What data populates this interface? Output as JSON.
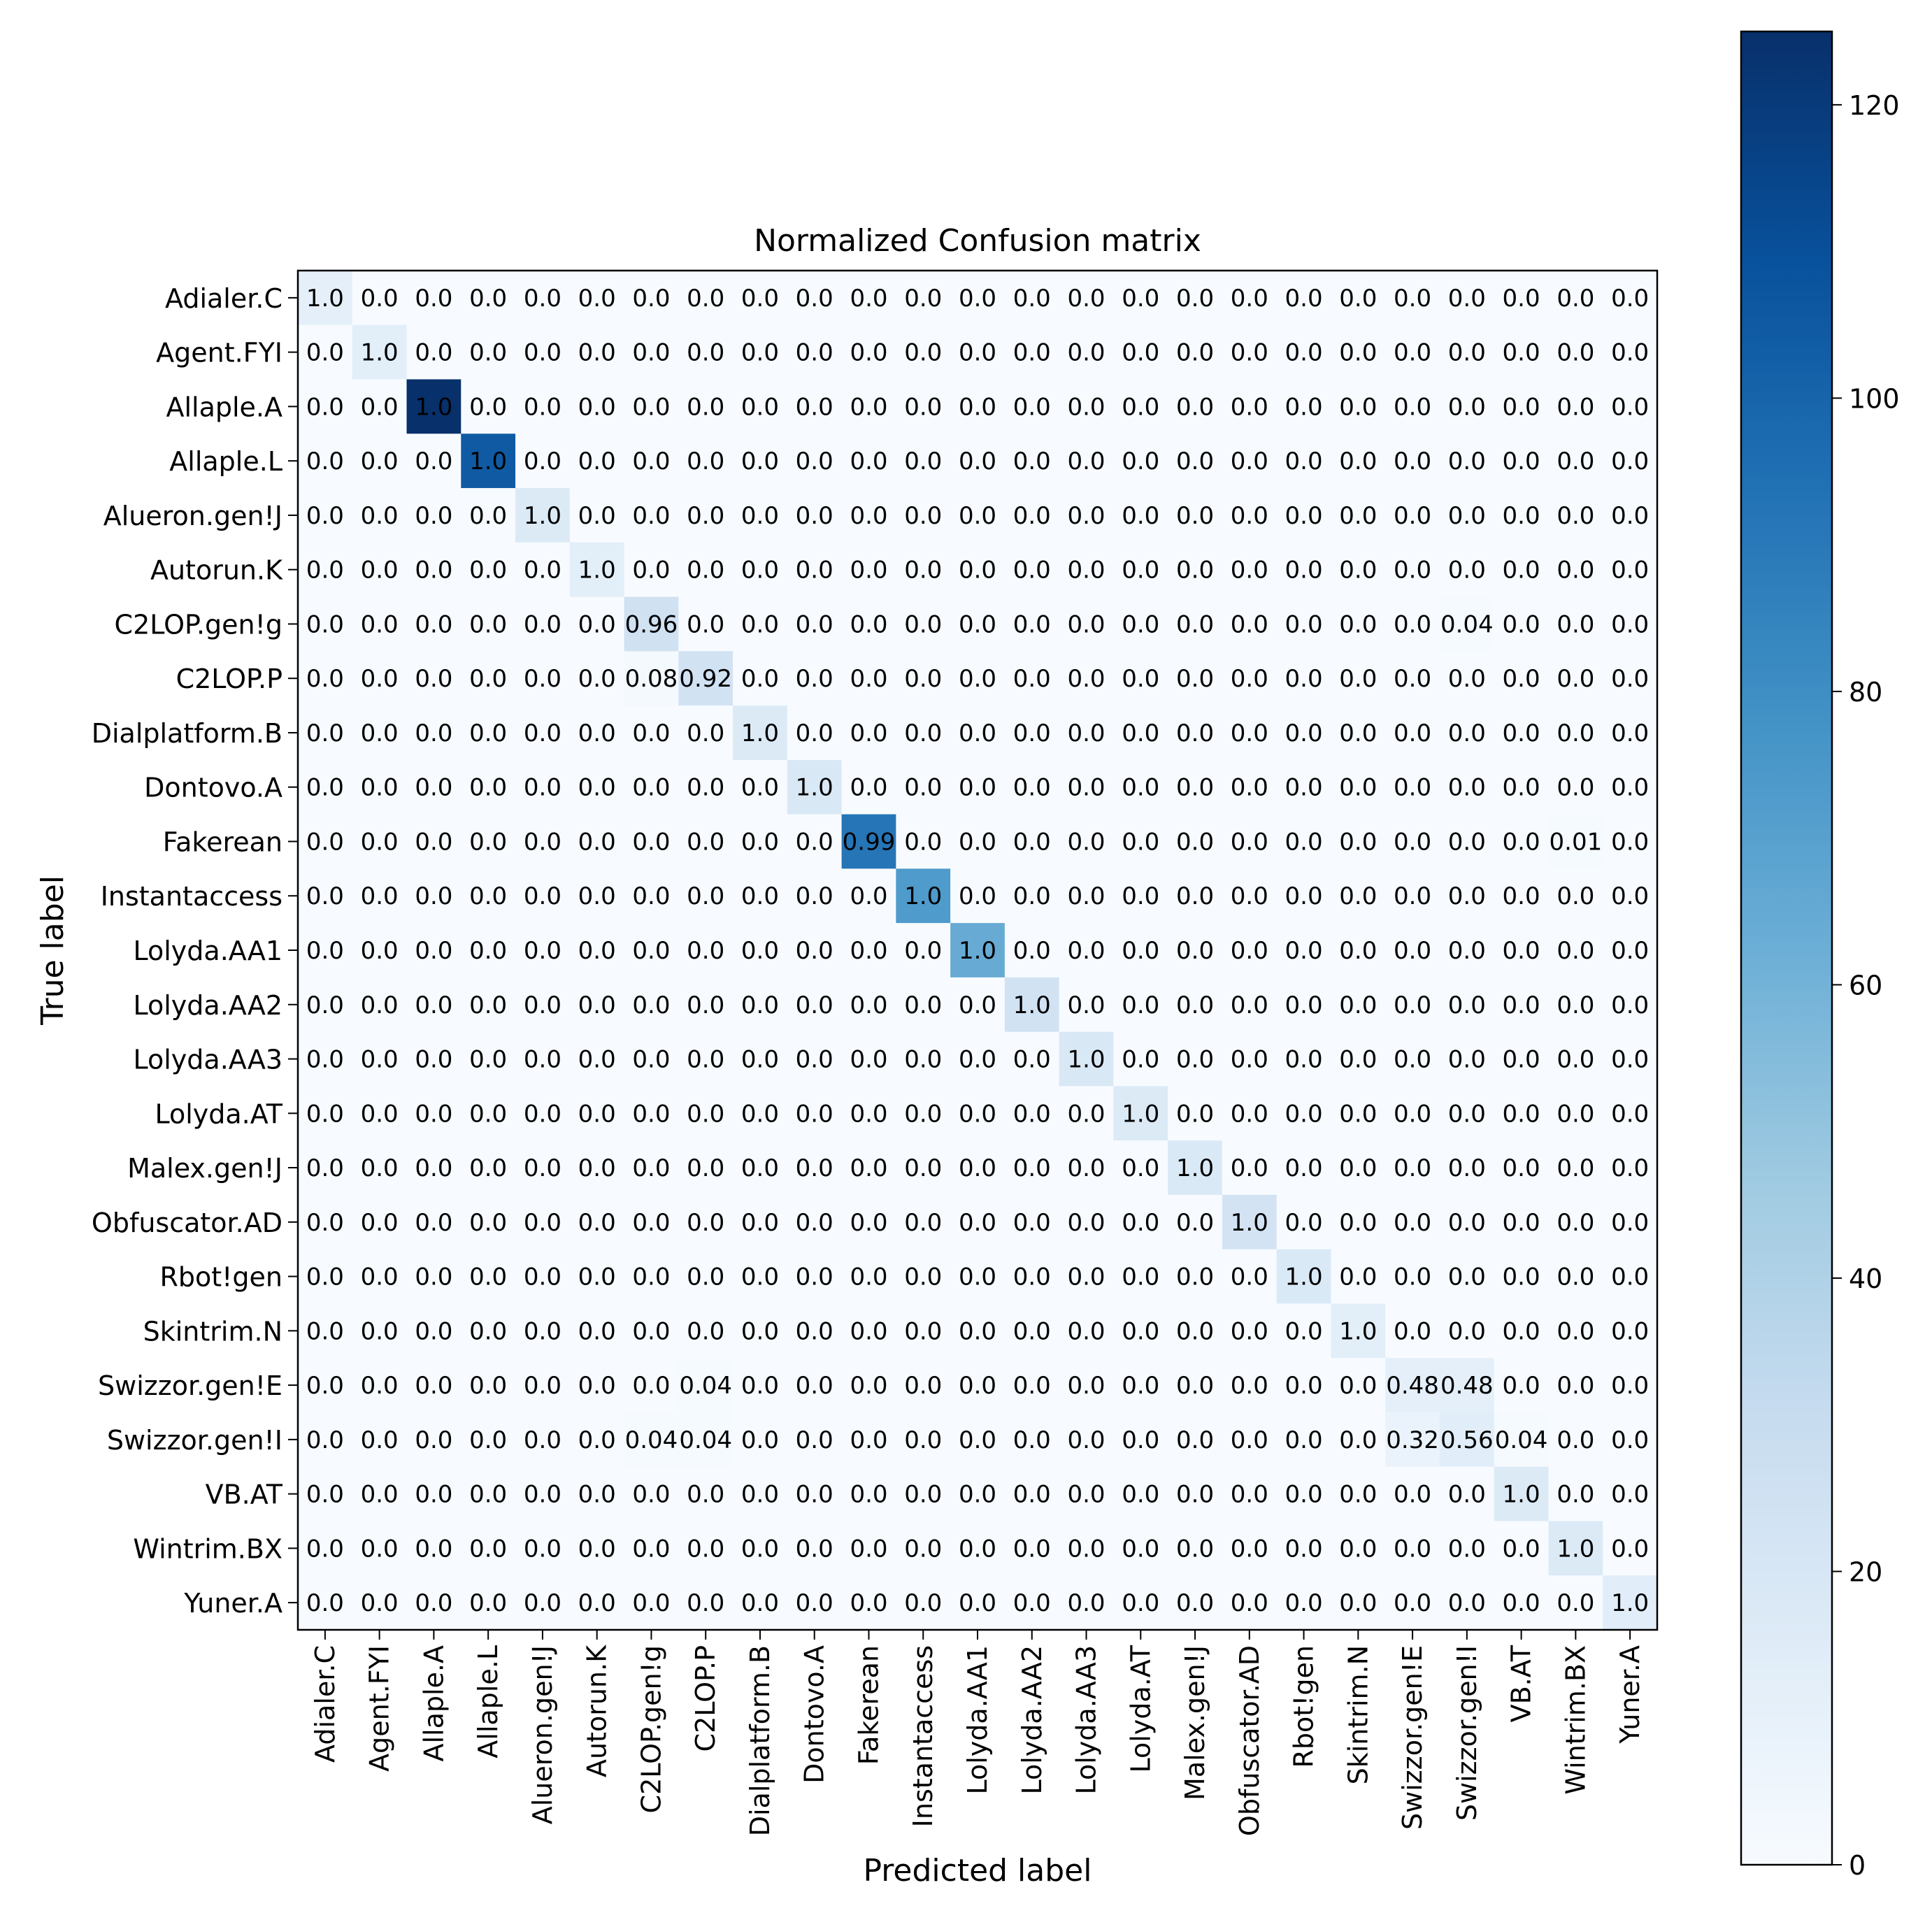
{
  "chart_data": {
    "type": "heatmap",
    "title": "Normalized Confusion matrix",
    "xlabel": "Predicted label",
    "ylabel": "True label",
    "labels": [
      "Adialer.C",
      "Agent.FYI",
      "Allaple.A",
      "Allaple.L",
      "Alueron.gen!J",
      "Autorun.K",
      "C2LOP.gen!g",
      "C2LOP.P",
      "Dialplatform.B",
      "Dontovo.A",
      "Fakerean",
      "Instantaccess",
      "Lolyda.AA1",
      "Lolyda.AA2",
      "Lolyda.AA3",
      "Lolyda.AT",
      "Malex.gen!J",
      "Obfuscator.AD",
      "Rbot!gen",
      "Skintrim.N",
      "Swizzor.gen!E",
      "Swizzor.gen!I",
      "VB.AT",
      "Wintrim.BX",
      "Yuner.A"
    ],
    "diagonal_text": [
      "1.0",
      "1.0",
      "1.0",
      "1.0",
      "1.0",
      "1.0",
      "0.96",
      "0.92",
      "1.0",
      "1.0",
      "0.99",
      "1.0",
      "1.0",
      "1.0",
      "1.0",
      "1.0",
      "1.0",
      "1.0",
      "1.0",
      "1.0",
      "0.48",
      "0.56",
      "1.0",
      "1.0",
      "1.0"
    ],
    "off_diagonal": [
      {
        "row": 6,
        "col": 21,
        "text": "0.04",
        "count": 1
      },
      {
        "row": 7,
        "col": 6,
        "text": "0.08",
        "count": 2
      },
      {
        "row": 10,
        "col": 23,
        "text": "0.01",
        "count": 1
      },
      {
        "row": 20,
        "col": 7,
        "text": "0.04",
        "count": 1
      },
      {
        "row": 20,
        "col": 21,
        "text": "0.48",
        "count": 12
      },
      {
        "row": 21,
        "col": 6,
        "text": "0.04",
        "count": 1
      },
      {
        "row": 21,
        "col": 7,
        "text": "0.04",
        "count": 1
      },
      {
        "row": 21,
        "col": 20,
        "text": "0.32",
        "count": 8
      },
      {
        "row": 21,
        "col": 22,
        "text": "0.04",
        "count": 1
      }
    ],
    "default_text": "0.0",
    "diagonal_counts": [
      12,
      13,
      125,
      105,
      17,
      13,
      25,
      24,
      17,
      19,
      92,
      73,
      64,
      24,
      19,
      17,
      18,
      23,
      18,
      13,
      12,
      14,
      17,
      17,
      14
    ],
    "colorbar": {
      "min": 0,
      "max": 125,
      "ticks": [
        0,
        20,
        40,
        60,
        80,
        100,
        120
      ],
      "tick_labels": [
        "0",
        "20",
        "40",
        "60",
        "80",
        "100",
        "120"
      ],
      "colormap": "Blues"
    }
  }
}
